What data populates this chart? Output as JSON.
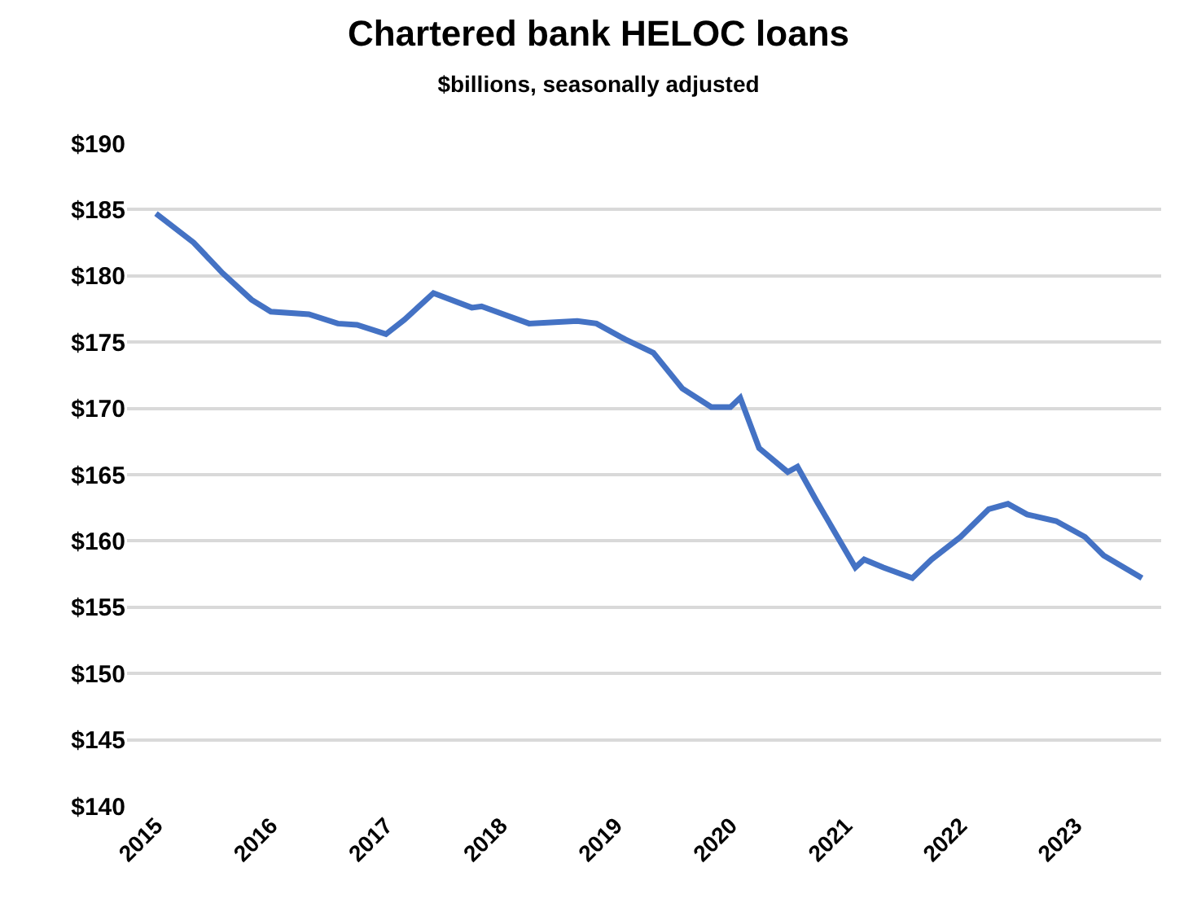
{
  "chart_data": {
    "type": "line",
    "title": "Chartered bank HELOC loans",
    "subtitle": "$billions, seasonally adjusted",
    "x": [
      "2015-01",
      "2015-05",
      "2015-08",
      "2015-11",
      "2016-01",
      "2016-05",
      "2016-08",
      "2016-10",
      "2017-01",
      "2017-03",
      "2017-06",
      "2017-10",
      "2017-11",
      "2018-04",
      "2018-09",
      "2018-11",
      "2019-02",
      "2019-05",
      "2019-08",
      "2019-11",
      "2020-01",
      "2020-02",
      "2020-04",
      "2020-07",
      "2020-08",
      "2020-10",
      "2021-02",
      "2021-03",
      "2021-05",
      "2021-08",
      "2021-10",
      "2022-01",
      "2022-04",
      "2022-06",
      "2022-08",
      "2022-11",
      "2023-02",
      "2023-04",
      "2023-08"
    ],
    "series": [
      {
        "color": "#4472c4",
        "values": [
          184.7,
          182.5,
          180.2,
          178.2,
          177.3,
          177.1,
          176.4,
          176.3,
          175.6,
          176.7,
          178.7,
          177.6,
          177.7,
          176.4,
          176.6,
          176.4,
          175.2,
          174.2,
          171.5,
          170.1,
          170.1,
          170.8,
          167.0,
          165.2,
          165.6,
          163.0,
          158.0,
          158.6,
          158.0,
          157.2,
          158.6,
          160.3,
          162.4,
          162.8,
          162.0,
          161.5,
          160.3,
          158.9,
          157.2
        ]
      }
    ],
    "xlim": [
      "2014-10",
      "2023-10"
    ],
    "xticks": [
      {
        "value": "2015-01",
        "label": "2015"
      },
      {
        "value": "2016-01",
        "label": "2016"
      },
      {
        "value": "2017-01",
        "label": "2017"
      },
      {
        "value": "2018-01",
        "label": "2018"
      },
      {
        "value": "2019-01",
        "label": "2019"
      },
      {
        "value": "2020-01",
        "label": "2020"
      },
      {
        "value": "2021-01",
        "label": "2021"
      },
      {
        "value": "2022-01",
        "label": "2022"
      },
      {
        "value": "2023-01",
        "label": "2023"
      }
    ],
    "ylim": [
      140,
      190
    ],
    "yticks": [
      {
        "value": 140,
        "label": "$140"
      },
      {
        "value": 145,
        "label": "$145"
      },
      {
        "value": 150,
        "label": "$150"
      },
      {
        "value": 155,
        "label": "$155"
      },
      {
        "value": 160,
        "label": "$160"
      },
      {
        "value": 165,
        "label": "$165"
      },
      {
        "value": 170,
        "label": "$170"
      },
      {
        "value": 175,
        "label": "$175"
      },
      {
        "value": 180,
        "label": "$180"
      },
      {
        "value": 185,
        "label": "$185"
      },
      {
        "value": 190,
        "label": "$190"
      }
    ],
    "grid": "y",
    "marker": "none",
    "line_style": "solid"
  }
}
